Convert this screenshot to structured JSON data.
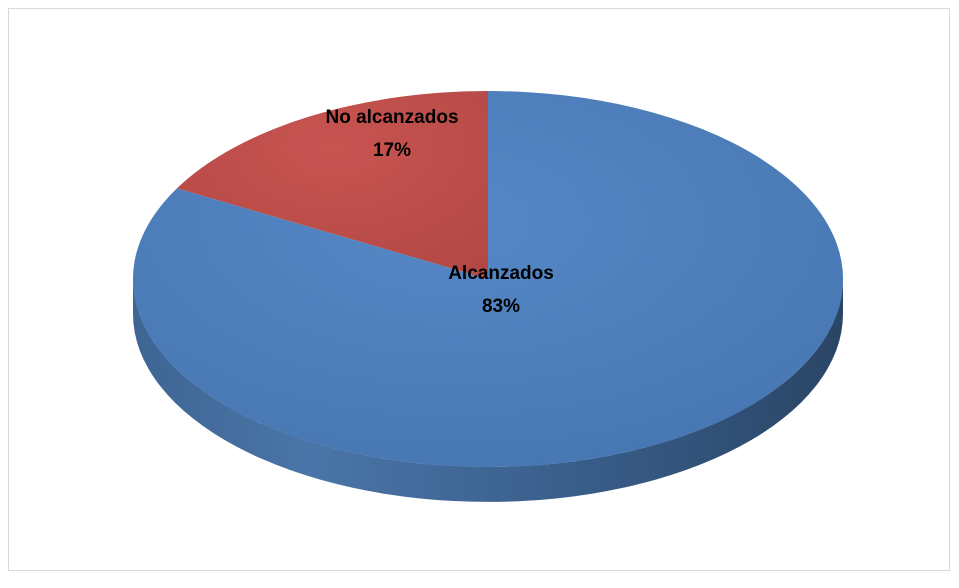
{
  "chart_data": {
    "type": "pie",
    "style": "3d",
    "title": "",
    "categories": [
      "No alcanzados",
      "Alcanzados"
    ],
    "values": [
      17,
      83
    ],
    "labels": [
      {
        "name": "No alcanzados",
        "percent": "17%"
      },
      {
        "name": "Alcanzados",
        "percent": "83%"
      }
    ],
    "colors": [
      "#c0504d",
      "#4f81bd"
    ],
    "legend": "none"
  }
}
